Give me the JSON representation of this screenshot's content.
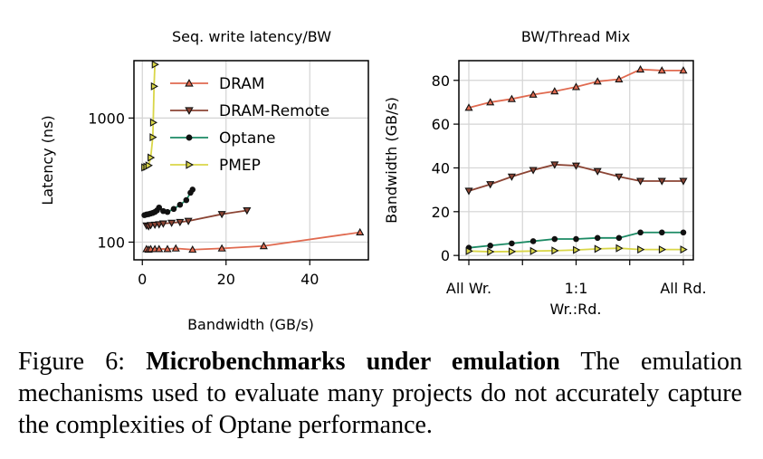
{
  "chart_data": [
    {
      "type": "line",
      "title": "Seq. write latency/BW",
      "xlabel": "Bandwidth (GB/s)",
      "ylabel": "Latency (ns)",
      "xscale": "linear",
      "yscale": "log",
      "xlim": [
        -2,
        54
      ],
      "ylim": [
        72,
        2900
      ],
      "xticks": [
        0,
        20,
        40
      ],
      "xtick_labels": [
        "0",
        "20",
        "40"
      ],
      "yticks": [
        100,
        1000
      ],
      "ytick_labels": [
        "100",
        "1000"
      ],
      "grid": true,
      "legend": {
        "placement": "upper-right",
        "entries": [
          "DRAM",
          "DRAM-Remote",
          "Optane",
          "PMEP"
        ]
      },
      "series": [
        {
          "name": "DRAM",
          "color": "#e06a50",
          "marker": "triangle-up",
          "x": [
            1,
            1.5,
            2,
            3,
            4,
            6,
            8,
            12,
            19,
            29,
            52
          ],
          "y": [
            88,
            87,
            88,
            88,
            88,
            88,
            89,
            87,
            89,
            93,
            120
          ]
        },
        {
          "name": "DRAM-Remote",
          "color": "#8b4434",
          "marker": "triangle-down",
          "x": [
            1,
            1.5,
            2,
            3,
            4,
            5,
            7,
            9,
            11,
            19,
            25
          ],
          "y": [
            136,
            134,
            137,
            138,
            139,
            141,
            143,
            145,
            148,
            168,
            180
          ]
        },
        {
          "name": "Optane",
          "color": "#1b8a64",
          "marker": "circle",
          "x": [
            0.5,
            1,
            1.5,
            2,
            2.5,
            3,
            3.5,
            4,
            5,
            6,
            7.5,
            9,
            10.5,
            11.5,
            12
          ],
          "y": [
            165,
            167,
            168,
            170,
            172,
            175,
            180,
            190,
            178,
            175,
            185,
            200,
            218,
            250,
            265
          ]
        },
        {
          "name": "PMEP",
          "color": "#d9d648",
          "marker": "triangle-right",
          "x": [
            0.5,
            1,
            1.5,
            2,
            2.5,
            2.6,
            2.8,
            3
          ],
          "y": [
            400,
            405,
            415,
            480,
            700,
            920,
            1800,
            2700
          ]
        }
      ]
    },
    {
      "type": "line",
      "title": "BW/Thread Mix",
      "xlabel": "Wr.:Rd.",
      "ylabel": "Bandwidth (GB/s)",
      "ylim": [
        -2,
        89
      ],
      "yticks": [
        0,
        20,
        40,
        60,
        80
      ],
      "ytick_labels": [
        "0",
        "20",
        "40",
        "60",
        "80"
      ],
      "xtick_labels": [
        "All Wr.",
        "1:1",
        "All Rd."
      ],
      "grid": true,
      "x": [
        0,
        1,
        2,
        3,
        4,
        5,
        6,
        7,
        8,
        9,
        10
      ],
      "series": [
        {
          "name": "DRAM",
          "color": "#e06a50",
          "marker": "triangle-up",
          "values": [
            67.5,
            70,
            71.5,
            73.5,
            75,
            77,
            79.5,
            80.5,
            85,
            84.5,
            84.5
          ]
        },
        {
          "name": "DRAM-Remote",
          "color": "#8b4434",
          "marker": "triangle-down",
          "values": [
            29.5,
            32.5,
            36,
            39,
            41.5,
            41,
            38.5,
            36,
            34,
            34,
            34
          ]
        },
        {
          "name": "Optane",
          "color": "#1b8a64",
          "marker": "circle",
          "values": [
            3.5,
            4.5,
            5.5,
            6.5,
            7.5,
            7.5,
            8,
            8,
            10.5,
            10.5,
            10.5
          ]
        },
        {
          "name": "PMEP",
          "color": "#d9d648",
          "marker": "triangle-right",
          "values": [
            2,
            1.7,
            1.8,
            2,
            2.2,
            2.5,
            3,
            3.3,
            2.7,
            2.7,
            2.7
          ]
        }
      ]
    }
  ],
  "caption": {
    "prefix": "Figure 6: ",
    "bold": "Microbenchmarks under emulation",
    "text": " The emulation mechanisms used to evaluate many projects do not accurately capture the complexities of Optane performance."
  }
}
